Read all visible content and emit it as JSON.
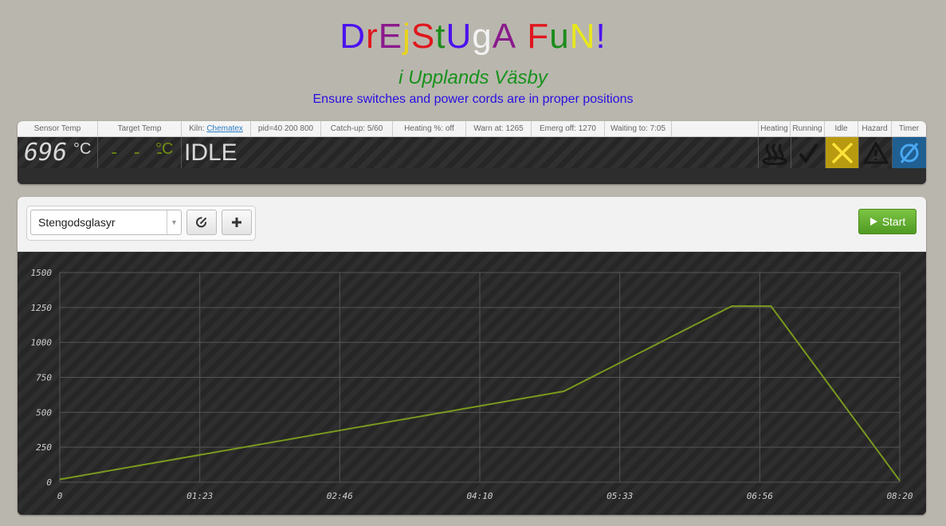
{
  "header": {
    "title_letters": [
      {
        "ch": "D",
        "color": "#4b12ef"
      },
      {
        "ch": "r",
        "color": "#e0161c"
      },
      {
        "ch": "E",
        "color": "#8a1a8c"
      },
      {
        "ch": "j",
        "color": "#e8d41c"
      },
      {
        "ch": "S",
        "color": "#e0161c"
      },
      {
        "ch": "t",
        "color": "#1c8c1c"
      },
      {
        "ch": "U",
        "color": "#4b12ef"
      },
      {
        "ch": "g",
        "color": "#f2f2f2"
      },
      {
        "ch": "A",
        "color": "#8a1a8c"
      },
      {
        "ch": " ",
        "color": "#000000"
      },
      {
        "ch": "F",
        "color": "#e0161c"
      },
      {
        "ch": "u",
        "color": "#1c8c1c"
      },
      {
        "ch": "N",
        "color": "#e8e81c"
      },
      {
        "ch": "!",
        "color": "#4b12ef"
      }
    ],
    "subtitle": "i Upplands Väsby",
    "notice": "Ensure switches and power cords are in proper positions"
  },
  "status": {
    "sensor_temp_label": "Sensor Temp",
    "sensor_temp_value": "696",
    "sensor_temp_unit": "°C",
    "target_temp_label": "Target Temp",
    "target_temp_value": "- - -",
    "target_temp_unit": "°C",
    "kiln_label": "Kiln:",
    "kiln_name": "Chematex",
    "state": "IDLE",
    "pid": "pid=40 200 800",
    "catchup": "Catch-up: 5/60",
    "heating_pct": "Heating %: off",
    "warn_at": "Warn at: 1265",
    "emerg_off": "Emerg off: 1270",
    "waiting_to": "Waiting to: 7:05",
    "indicators": [
      {
        "label": "Heating",
        "icon": "heating-icon",
        "active": false
      },
      {
        "label": "Running",
        "icon": "running-check-icon",
        "active": false
      },
      {
        "label": "Idle",
        "icon": "idle-x-icon",
        "active": true,
        "color": "#e8c81c"
      },
      {
        "label": "Hazard",
        "icon": "hazard-icon",
        "active": false
      },
      {
        "label": "Timer",
        "icon": "timer-icon",
        "active": true,
        "color": "#2a8ad8"
      }
    ]
  },
  "toolbar": {
    "profile_selected": "Stengodsglasyr",
    "edit_icon": "edit-icon",
    "add_icon": "plus-icon",
    "start_label": "Start",
    "start_icon": "play-icon"
  },
  "chart_data": {
    "type": "line",
    "x_tick_labels": [
      "0",
      "01:23",
      "02:46",
      "04:10",
      "05:33",
      "06:56",
      "08:20"
    ],
    "x_ticks_seconds": [
      0,
      5000,
      10000,
      15000,
      20000,
      25000,
      30000
    ],
    "y_ticks": [
      0,
      250,
      500,
      750,
      1000,
      1250,
      1500
    ],
    "ylim": [
      0,
      1500
    ],
    "xlim": [
      0,
      30000
    ],
    "series": [
      {
        "color": "#7a9a1e",
        "points": [
          [
            0,
            20
          ],
          [
            18000,
            650
          ],
          [
            24000,
            1260
          ],
          [
            25400,
            1260
          ],
          [
            30000,
            10
          ]
        ]
      }
    ],
    "grid": true,
    "xlabel": "",
    "ylabel": ""
  }
}
